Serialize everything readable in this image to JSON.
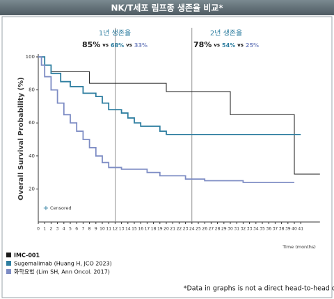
{
  "chart_data": {
    "type": "step",
    "title": "NK/T세포 림프종 생존율 비교*",
    "x_label": "Time (months)",
    "y_label": "Overall Survival Probability (%)",
    "xlim": [
      0,
      44
    ],
    "ylim": [
      0,
      100
    ],
    "xticks": [
      0,
      1,
      2,
      3,
      4,
      5,
      6,
      7,
      8,
      9,
      10,
      11,
      12,
      13,
      14,
      15,
      16,
      17,
      18,
      19,
      20,
      21,
      22,
      23,
      24,
      25,
      26,
      27,
      28,
      29,
      30,
      31,
      32,
      33,
      34,
      35,
      36,
      37,
      38,
      39,
      40,
      41
    ],
    "yticks": [
      20,
      40,
      60,
      80,
      100
    ],
    "censored_label": "Censored",
    "vlines": [
      12,
      24
    ],
    "annotations": [
      {
        "title": "1년 생존율",
        "separator": "vs",
        "values": [
          85,
          68,
          33
        ],
        "value_labels": [
          "85%",
          "68%",
          "33%"
        ]
      },
      {
        "title": "2년 생존율",
        "separator": "vs",
        "values": [
          78,
          54,
          25
        ],
        "value_labels": [
          "78%",
          "54%",
          "25%"
        ]
      }
    ],
    "series": [
      {
        "name": "IMC-001",
        "color": "#1a1a1a",
        "x": [
          0,
          1,
          2,
          8,
          20,
          30,
          40,
          44
        ],
        "values": [
          100,
          95,
          91,
          84,
          79,
          65,
          29,
          29
        ]
      },
      {
        "name": "Sugemalimab (Huang H, JCO 2023)",
        "color": "#2e7ea0",
        "x": [
          0,
          1,
          2,
          3.5,
          5,
          7,
          9,
          10,
          11,
          13,
          14,
          15,
          16,
          19,
          20,
          41
        ],
        "values": [
          100,
          95,
          90,
          85,
          82,
          78,
          76,
          72,
          68,
          66,
          63,
          60,
          58,
          55,
          53,
          53
        ]
      },
      {
        "name": "화학요법 (Lim SH, Ann Oncol. 2017)",
        "color": "#7d8cc4",
        "x": [
          0,
          0.5,
          1,
          2,
          3,
          4,
          5,
          6,
          7,
          8,
          9,
          10,
          11,
          13,
          17,
          19,
          23,
          26,
          32,
          40
        ],
        "values": [
          100,
          95,
          88,
          80,
          72,
          65,
          60,
          55,
          50,
          45,
          40,
          36,
          33,
          32,
          30,
          28,
          26,
          25,
          24,
          24
        ]
      }
    ],
    "footnote": "*Data in graphs is not a direct head-to-head comparison"
  }
}
